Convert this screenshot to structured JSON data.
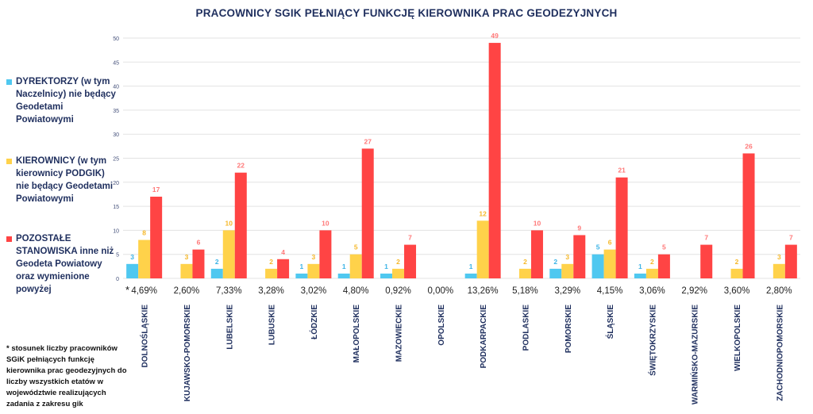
{
  "chart_data": {
    "type": "bar",
    "title": "PRACOWNICY SGIK PEŁNIĄCY FUNKCJĘ KIEROWNIKA PRAC GEODEZYJNYCH",
    "categories": [
      "DOLNOŚLĄSKIE",
      "KUJAWSKO-POMORSKIE",
      "LUBELSKIE",
      "LUBUSKIE",
      "ŁÓDZKIE",
      "MAŁOPOLSKIE",
      "MAZOWIECKIE",
      "OPOLSKIE",
      "PODKARPACKIE",
      "PODLASKIE",
      "POMORSKIE",
      "ŚLĄSKIE",
      "ŚWIĘTOKRZYSKIE",
      "WARMIŃSKO-MAZURSKIE",
      "WIELKOPOLSKIE",
      "ZACHODNIOPOMORSKIE"
    ],
    "series": [
      {
        "name": "DYREKTORZY (w tym Naczelnicy) nie będący Geodetami Powiatowymi",
        "color": "#4fc8f0",
        "label_color": "#3bb3e6",
        "values": [
          3,
          null,
          2,
          null,
          1,
          1,
          1,
          null,
          1,
          null,
          2,
          5,
          1,
          null,
          null,
          null
        ]
      },
      {
        "name": "KIEROWNICY (w tym kierownicy PODGIK) nie będący Geodetami Powiatowymi",
        "color": "#ffd24a",
        "label_color": "#f5b82a",
        "values": [
          8,
          3,
          10,
          2,
          3,
          5,
          2,
          null,
          12,
          2,
          3,
          6,
          2,
          null,
          2,
          3
        ]
      },
      {
        "name": "POZOSTAŁE STANOWISKA inne niż Geodeta Powiatowy oraz wymienione powyżej",
        "color": "#ff4444",
        "label_color": "#ff7878",
        "values": [
          17,
          6,
          22,
          4,
          10,
          27,
          7,
          null,
          49,
          10,
          9,
          21,
          5,
          7,
          26,
          7
        ]
      }
    ],
    "percent_row_marker": "*",
    "percentages": [
      "4,69%",
      "2,60%",
      "7,33%",
      "3,28%",
      "3,02%",
      "4,80%",
      "0,92%",
      "0,00%",
      "13,26%",
      "5,18%",
      "3,29%",
      "4,15%",
      "3,06%",
      "2,92%",
      "3,60%",
      "2,80%"
    ],
    "ylim": [
      0,
      50
    ],
    "yticks": [
      0,
      5,
      10,
      15,
      20,
      25,
      30,
      35,
      40,
      45,
      50
    ],
    "grid": true,
    "legend": "left",
    "footnote": "* stosunek liczby pracowników SGiK pełniących funkcję kierownika prac geodezyjnych do liczby wszystkich etatów w województwie realizujących zadania z zakresu gik"
  }
}
